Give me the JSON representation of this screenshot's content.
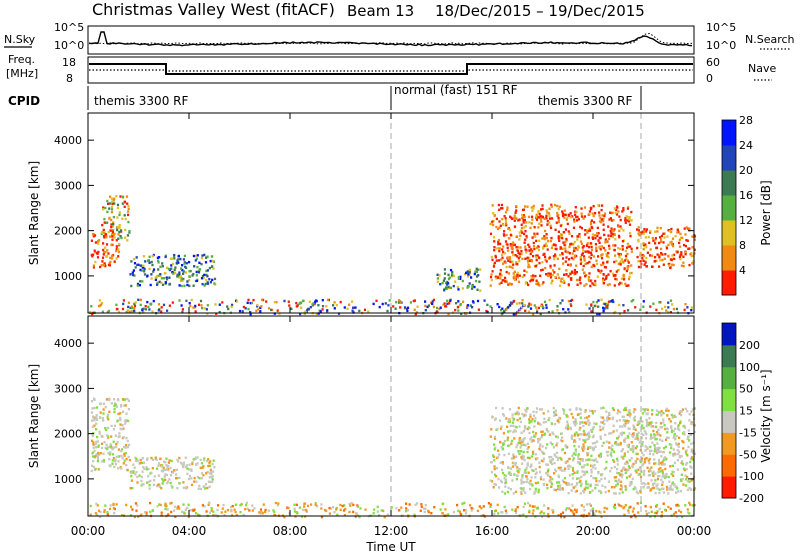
{
  "header": {
    "title": "Christmas Valley West (fitACF)",
    "beam": "Beam 13",
    "dates": "18/Dec/2015 – 19/Dec/2015"
  },
  "noise_panel": {
    "left_label": "N.Sky",
    "right_label": "N.Search",
    "left_ticks": [
      "10^5",
      "10^0"
    ],
    "right_ticks": [
      "10^5",
      "10^0"
    ]
  },
  "freq_panel": {
    "left_label_line1": "Freq.",
    "left_label_line2": "[MHz]",
    "right_label": "Nave",
    "left_ticks": [
      "18",
      "8"
    ],
    "right_ticks": [
      "60",
      "0"
    ]
  },
  "cpid": {
    "label": "CPID",
    "segments": [
      "themis 3300 RF",
      "normal (fast) 151 RF",
      "themis 3300 RF"
    ]
  },
  "x_axis": {
    "label": "Time UT",
    "ticks": [
      "00:00",
      "04:00",
      "08:00",
      "12:00",
      "16:00",
      "20:00",
      "00:00"
    ]
  },
  "chart_data": [
    {
      "type": "heatmap",
      "title": "",
      "xlabel": "Time UT",
      "ylabel": "Slant Range [km]",
      "x_range_hours": [
        0,
        24
      ],
      "ylim_km": [
        180,
        4600
      ],
      "y_ticks": [
        "1000",
        "2000",
        "3000",
        "4000"
      ],
      "colorbar": {
        "label": "Power [dB]",
        "ticks": [
          "4",
          "8",
          "12",
          "16",
          "20",
          "24",
          "28"
        ],
        "colors": [
          "#0014ff",
          "#2244bb",
          "#3c7a52",
          "#55b040",
          "#e0c020",
          "#f28a10",
          "#ff1a00"
        ]
      },
      "echo_regions": [
        {
          "x": [
            0.1,
            1.2
          ],
          "y": [
            1200,
            2000
          ],
          "level": "high"
        },
        {
          "x": [
            0.5,
            1.6
          ],
          "y": [
            1800,
            2800
          ],
          "level": "mid"
        },
        {
          "x": [
            1.6,
            5.0
          ],
          "y": [
            800,
            1500
          ],
          "level": "low"
        },
        {
          "x": [
            13.8,
            15.5
          ],
          "y": [
            700,
            1200
          ],
          "level": "low"
        },
        {
          "x": [
            15.9,
            21.5
          ],
          "y": [
            800,
            2600
          ],
          "level": "high"
        },
        {
          "x": [
            21.7,
            24.0
          ],
          "y": [
            1200,
            2100
          ],
          "level": "high"
        },
        {
          "x": [
            0,
            24
          ],
          "y": [
            180,
            500
          ],
          "level": "mixed"
        }
      ]
    },
    {
      "type": "heatmap",
      "title": "",
      "xlabel": "Time UT",
      "ylabel": "Slant Range [km]",
      "x_range_hours": [
        0,
        24
      ],
      "ylim_km": [
        180,
        4600
      ],
      "y_ticks": [
        "1000",
        "2000",
        "3000",
        "4000"
      ],
      "colorbar": {
        "label": "Velocity [m s⁻¹]",
        "ticks": [
          "200",
          "100",
          "50",
          "15",
          "-15",
          "-50",
          "-100",
          "-200"
        ],
        "colors": [
          "#0014c0",
          "#3c7a52",
          "#55b040",
          "#80e040",
          "#c8c8c0",
          "#f09a20",
          "#ff6a00",
          "#ff1a00"
        ]
      },
      "echo_regions": [
        {
          "x": [
            0.1,
            1.6
          ],
          "y": [
            1200,
            2800
          ],
          "level": "ground"
        },
        {
          "x": [
            1.6,
            5.0
          ],
          "y": [
            800,
            1500
          ],
          "level": "ground"
        },
        {
          "x": [
            15.9,
            24.0
          ],
          "y": [
            700,
            2600
          ],
          "level": "ground"
        },
        {
          "x": [
            0,
            24
          ],
          "y": [
            180,
            500
          ],
          "level": "negative"
        }
      ]
    }
  ]
}
